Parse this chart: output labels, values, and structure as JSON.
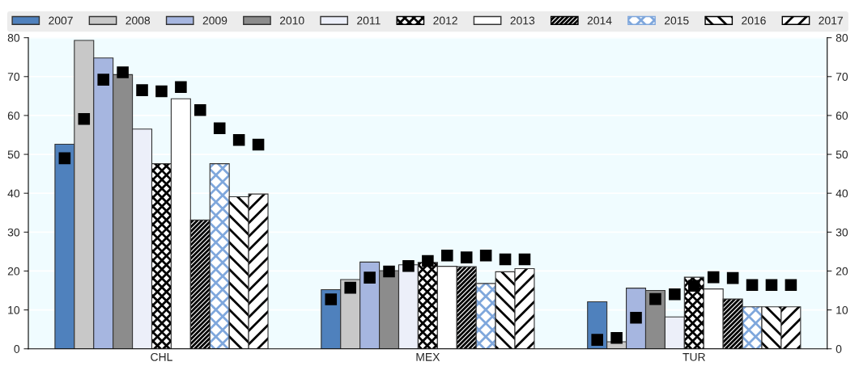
{
  "chart_data": {
    "type": "bar",
    "categories": [
      "CHL",
      "MEX",
      "TUR"
    ],
    "series": [
      {
        "name": "2007",
        "color": "#4f81bd",
        "values": [
          52.6,
          15.2,
          12.1
        ]
      },
      {
        "name": "2008",
        "color": "#c8c8c8",
        "values": [
          79.3,
          17.8,
          1.8
        ]
      },
      {
        "name": "2009",
        "color": "#a6b6e0",
        "values": [
          74.8,
          22.3,
          15.6
        ]
      },
      {
        "name": "2010",
        "color": "#8c8c8c",
        "values": [
          70.5,
          20.1,
          15.0
        ]
      },
      {
        "name": "2011",
        "color": "#eceff9",
        "values": [
          56.5,
          21.6,
          8.2
        ]
      },
      {
        "name": "2012",
        "color": "#000000",
        "values": [
          47.6,
          22.2,
          18.4
        ]
      },
      {
        "name": "2013",
        "color": "#ffffff",
        "values": [
          64.3,
          21.2,
          15.4
        ]
      },
      {
        "name": "2014",
        "color": "#000000",
        "values": [
          33.1,
          21.1,
          12.8
        ]
      },
      {
        "name": "2015",
        "color": "#7fa7dc",
        "values": [
          47.6,
          16.8,
          10.8
        ]
      },
      {
        "name": "2016",
        "color": "#000000",
        "values": [
          39.1,
          19.8,
          10.8
        ]
      },
      {
        "name": "2017",
        "color": "#000000",
        "values": [
          39.8,
          20.6,
          10.8
        ]
      },
      {
        "type": "scatter",
        "color": "#000000",
        "values": [
          49.0,
          12.7,
          2.3
        ]
      },
      {
        "type": "scatter",
        "color": "#000000",
        "values": [
          59.1,
          15.7,
          2.8
        ]
      },
      {
        "type": "scatter",
        "color": "#000000",
        "values": [
          69.2,
          18.3,
          8.0
        ]
      },
      {
        "type": "scatter",
        "color": "#000000",
        "values": [
          71.1,
          19.9,
          12.8
        ]
      },
      {
        "type": "scatter",
        "color": "#000000",
        "values": [
          66.5,
          21.3,
          14.0
        ]
      },
      {
        "type": "scatter",
        "color": "#000000",
        "values": [
          66.2,
          22.6,
          16.2
        ]
      },
      {
        "type": "scatter",
        "color": "#000000",
        "values": [
          67.3,
          24.0,
          18.4
        ]
      },
      {
        "type": "scatter",
        "color": "#000000",
        "values": [
          61.4,
          23.5,
          18.2
        ]
      },
      {
        "type": "scatter",
        "color": "#000000",
        "values": [
          56.7,
          24.0,
          16.4
        ]
      },
      {
        "type": "scatter",
        "color": "#000000",
        "values": [
          53.7,
          23.0,
          16.4
        ]
      },
      {
        "type": "scatter",
        "color": "#000000",
        "values": [
          52.5,
          23.0,
          16.4
        ]
      }
    ],
    "ylim": [
      0,
      80
    ],
    "yticks": [
      0,
      10,
      20,
      30,
      40,
      50,
      60,
      70,
      80
    ],
    "y2lim": [
      0,
      80
    ],
    "y2ticks": [
      0,
      10,
      20,
      30,
      40,
      50,
      60,
      70,
      80
    ],
    "marker": "square",
    "grid": "y",
    "legend": "top"
  }
}
